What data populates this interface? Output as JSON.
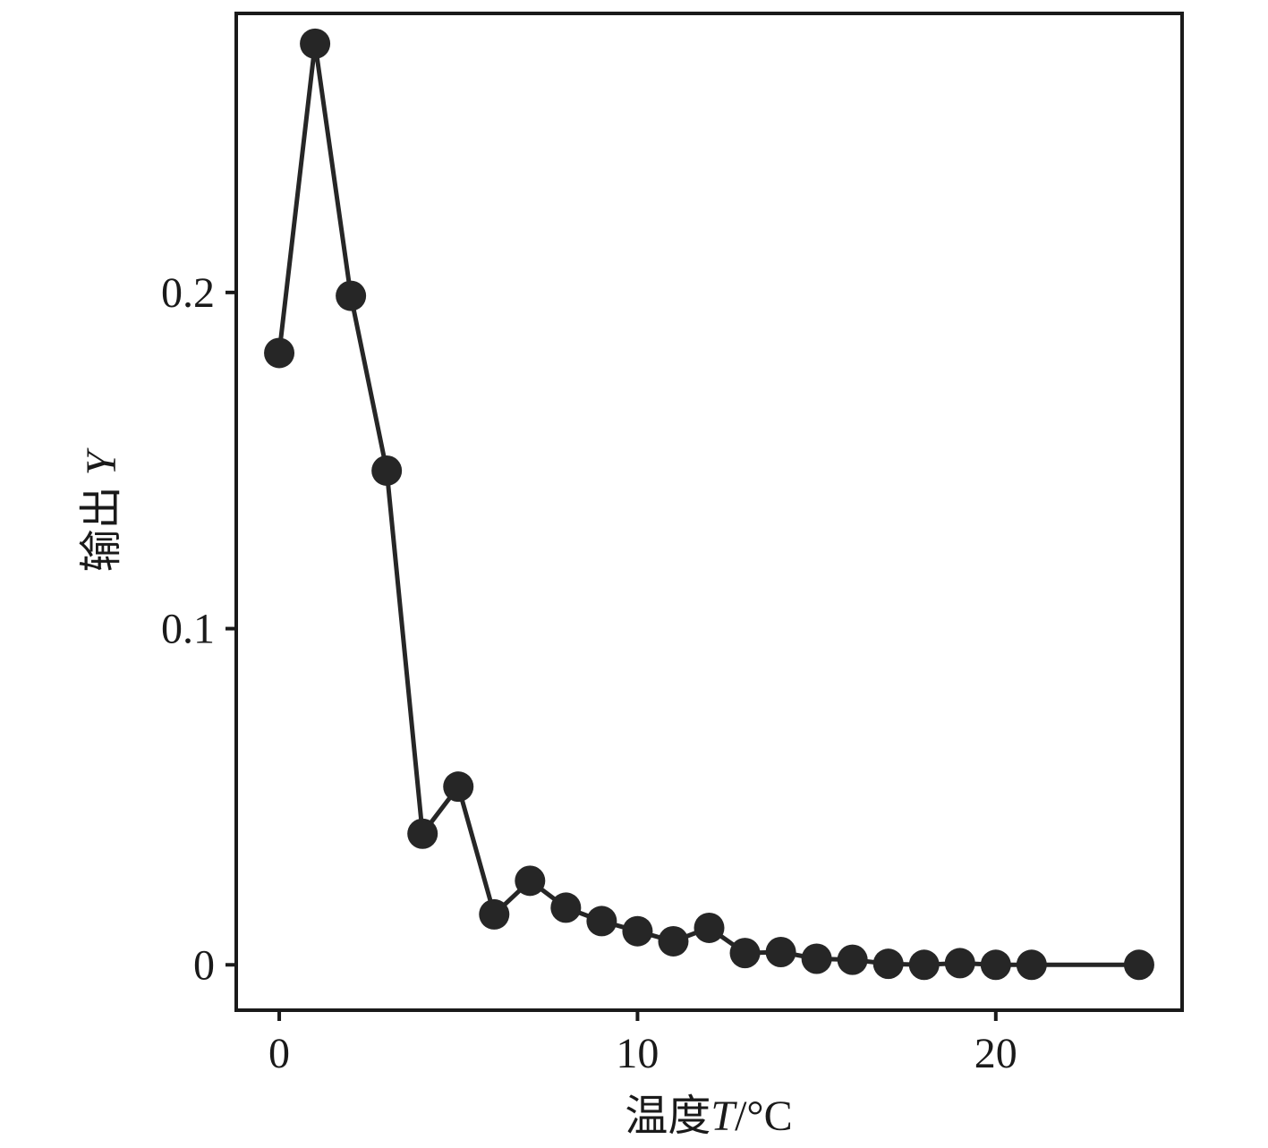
{
  "chart_data": {
    "type": "line",
    "title": "",
    "xlabel_prefix": "温度",
    "xlabel_var": "T",
    "xlabel_unit": "/°C",
    "ylabel_prefix": "输出 ",
    "ylabel_var": "Y",
    "xlim": [
      -1.2,
      25.2
    ],
    "ylim": [
      -0.0135,
      0.283
    ],
    "xticks": [
      0,
      10,
      20
    ],
    "xtick_labels": [
      "0",
      "10",
      "20"
    ],
    "yticks": [
      0,
      0.1,
      0.2
    ],
    "ytick_labels": [
      "0",
      "0.1",
      "0.2"
    ],
    "grid": false,
    "legend": "none",
    "colors": {
      "series": "#262626",
      "frame": "#1a1a1a"
    },
    "series": [
      {
        "x": [
          0,
          1,
          2,
          3,
          4,
          5,
          6,
          7,
          8,
          9,
          10,
          11,
          12,
          13,
          14,
          15,
          16,
          17,
          18,
          19,
          20,
          21,
          24
        ],
        "y": [
          0.182,
          0.274,
          0.199,
          0.147,
          0.039,
          0.053,
          0.015,
          0.025,
          0.017,
          0.013,
          0.01,
          0.007,
          0.011,
          0.0035,
          0.0038,
          0.0018,
          0.0015,
          0.0003,
          0.0,
          0.0005,
          0.0,
          0.0,
          0.0
        ]
      }
    ]
  }
}
